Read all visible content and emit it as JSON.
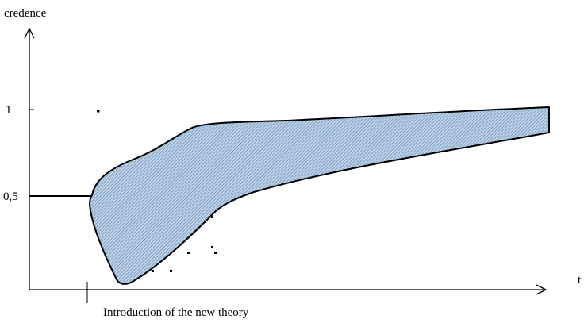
{
  "diagram": {
    "y_axis_label": "credence",
    "x_axis_label": "t",
    "y_tick_labels": [
      "1",
      "0,5"
    ],
    "annotation": "Introduction of the new theory",
    "colors": {
      "band_fill": "#b9cfe6",
      "band_hatch": "#5a7ea8",
      "outline": "#000000",
      "background": "#ffffff"
    }
  }
}
